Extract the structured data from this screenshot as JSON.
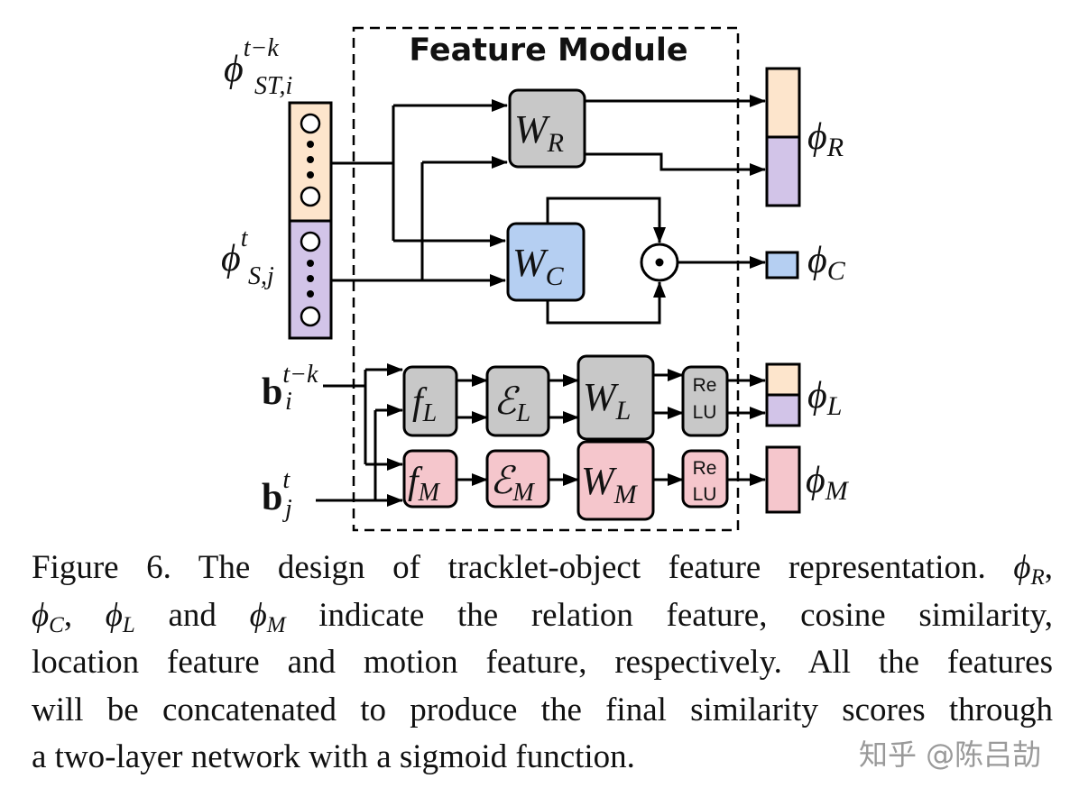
{
  "figure": {
    "title": "Feature Module",
    "inputs": {
      "tracklet_feature": {
        "sym": "ϕ",
        "sup": "t−k",
        "sub": "ST,i"
      },
      "object_feature": {
        "sym": "ϕ",
        "sup": "t",
        "sub": "S,j"
      },
      "box_tracklet": {
        "sym": "b",
        "sup": "t−k",
        "sub": "i"
      },
      "box_object": {
        "sym": "b",
        "sup": "t",
        "sub": "j"
      }
    },
    "blocks": {
      "W_R": {
        "sym": "W",
        "sub": "R"
      },
      "W_C": {
        "sym": "W",
        "sub": "C"
      },
      "f_L": {
        "sym": "f",
        "sub": "L"
      },
      "E_L": {
        "sym": "ℰ",
        "sub": "L"
      },
      "W_L": {
        "sym": "W",
        "sub": "L"
      },
      "f_M": {
        "sym": "f",
        "sub": "M"
      },
      "E_M": {
        "sym": "ℰ",
        "sub": "M"
      },
      "W_M": {
        "sym": "W",
        "sub": "M"
      },
      "relu_top": "Re",
      "relu_bottom": "LU",
      "odot": "⊙"
    },
    "outputs": {
      "phi_R": {
        "sym": "ϕ",
        "sub": "R"
      },
      "phi_C": {
        "sym": "ϕ",
        "sub": "C"
      },
      "phi_L": {
        "sym": "ϕ",
        "sub": "L"
      },
      "phi_M": {
        "sym": "ϕ",
        "sub": "M"
      }
    },
    "colors": {
      "peach": "#fde5cc",
      "purple": "#d2c4e8",
      "gray": "#c8c8c8",
      "blue": "#b5cff2",
      "pink": "#f5c6cc"
    }
  },
  "caption": {
    "lines": [
      [
        {
          "t": "Figure 6.  The design of tracklet-object feature representation. "
        },
        {
          "t": "ϕ",
          "i": true
        },
        {
          "t": "R",
          "sub": true
        },
        {
          "t": ","
        }
      ],
      [
        {
          "t": "ϕ",
          "i": true
        },
        {
          "t": "C",
          "sub": true
        },
        {
          "t": ", "
        },
        {
          "t": "ϕ",
          "i": true
        },
        {
          "t": "L",
          "sub": true
        },
        {
          "t": " and "
        },
        {
          "t": "ϕ",
          "i": true
        },
        {
          "t": "M",
          "sub": true
        },
        {
          "t": " indicate the relation feature, cosine similarity,"
        }
      ],
      [
        {
          "t": "location feature and motion feature, respectively. All the features"
        }
      ],
      [
        {
          "t": "will be concatenated to produce the final similarity scores through"
        }
      ],
      [
        {
          "t": "a two-layer network with a sigmoid function."
        }
      ]
    ]
  },
  "watermark": "知乎 @陈吕劼"
}
